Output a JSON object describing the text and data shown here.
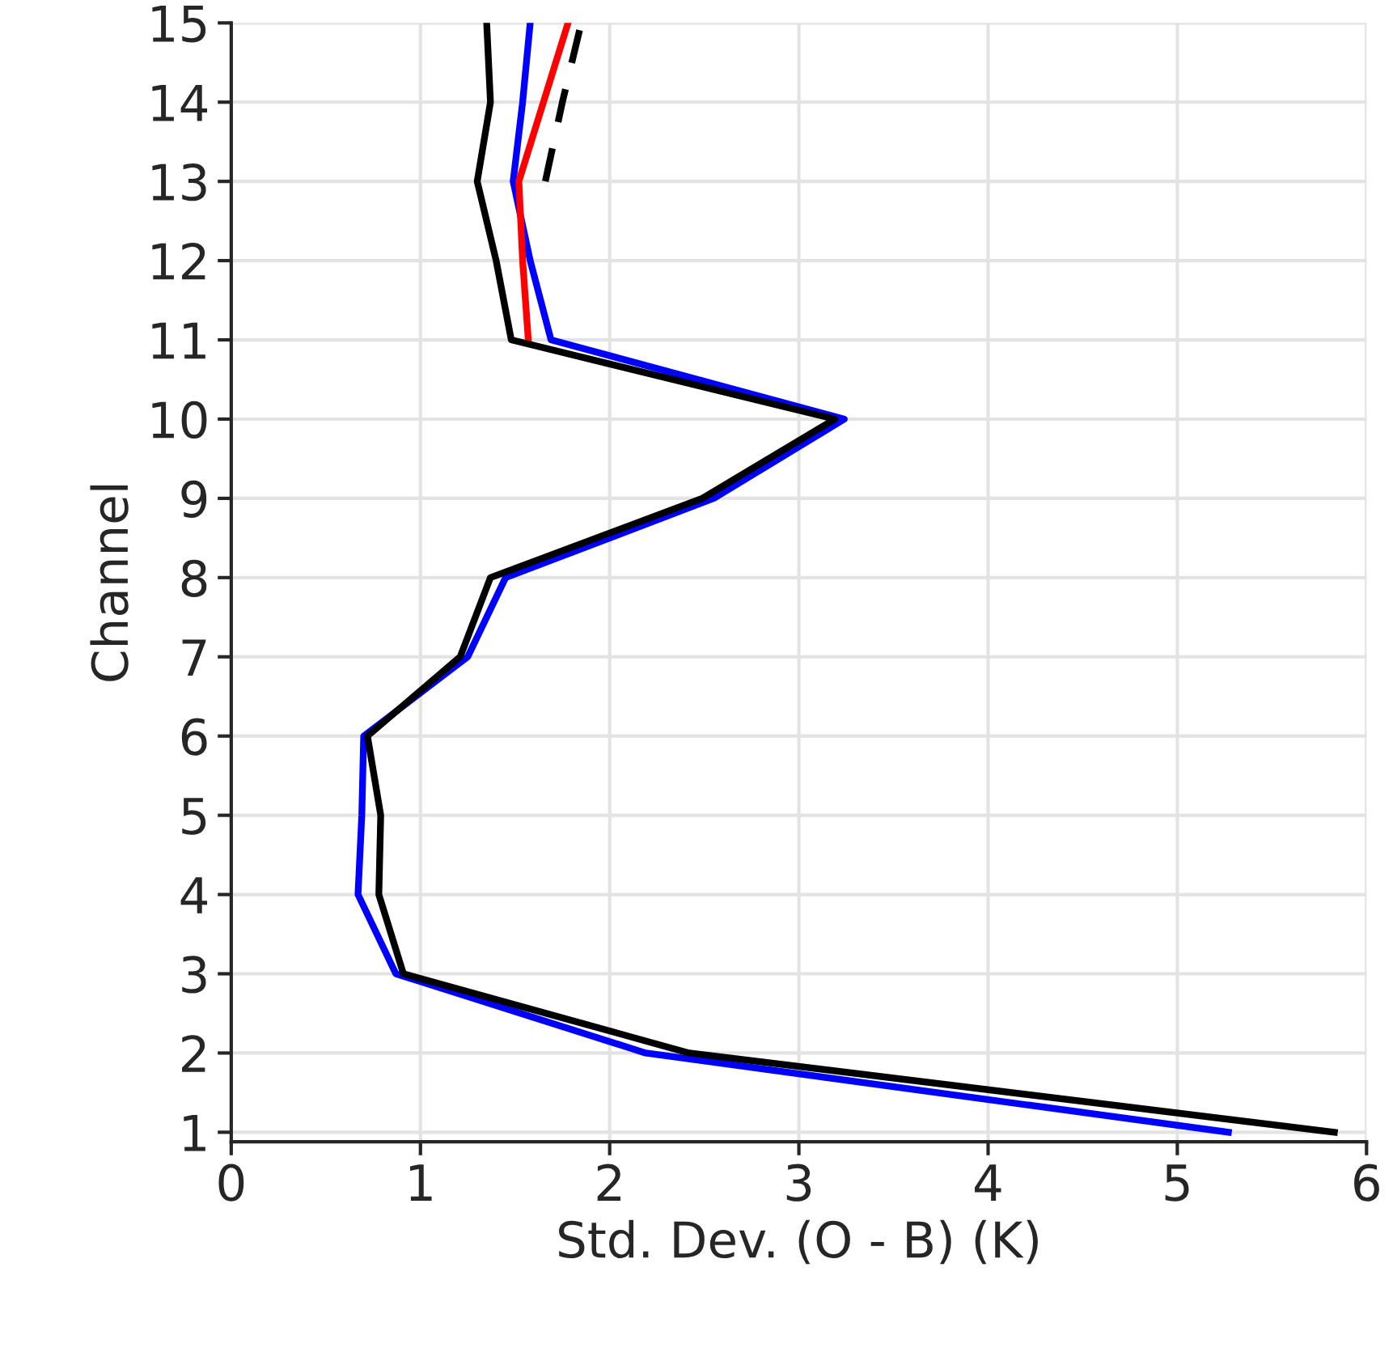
{
  "chart_data": {
    "type": "line",
    "orientation": "horizontal",
    "xlabel": "Std. Dev. (O - B) (K)",
    "ylabel": "Channel",
    "x": [
      1,
      2,
      3,
      4,
      5,
      6,
      7,
      8,
      9,
      10,
      11,
      12,
      13,
      14,
      15
    ],
    "series": [
      {
        "color": "#0000ff",
        "values": [
          5.27,
          2.19,
          0.87,
          0.67,
          0.69,
          0.7,
          1.25,
          1.45,
          2.55,
          3.24,
          1.69,
          1.58,
          1.49,
          1.54,
          1.58
        ]
      },
      {
        "color": "#ff0000",
        "values": [
          null,
          null,
          null,
          null,
          null,
          null,
          null,
          null,
          null,
          null,
          1.57,
          1.54,
          1.52,
          1.65,
          1.78
        ]
      },
      {
        "color": "#000000",
        "line_style": "dashed",
        "values": [
          null,
          null,
          null,
          null,
          null,
          null,
          null,
          null,
          null,
          null,
          null,
          null,
          1.66,
          1.75,
          1.85
        ]
      },
      {
        "color": "#000000",
        "values": [
          5.83,
          2.42,
          0.91,
          0.78,
          0.79,
          0.72,
          1.21,
          1.37,
          2.49,
          3.19,
          1.48,
          1.4,
          1.3,
          1.37,
          1.35
        ]
      }
    ],
    "xlim": [
      0,
      6
    ],
    "xticks": [
      0,
      1,
      2,
      3,
      4,
      5,
      6
    ],
    "ylim": [
      0.88,
      15
    ],
    "yticks": [
      1,
      2,
      3,
      4,
      5,
      6,
      7,
      8,
      9,
      10,
      11,
      12,
      13,
      14,
      15
    ],
    "grid": true,
    "line_style": "solid"
  }
}
